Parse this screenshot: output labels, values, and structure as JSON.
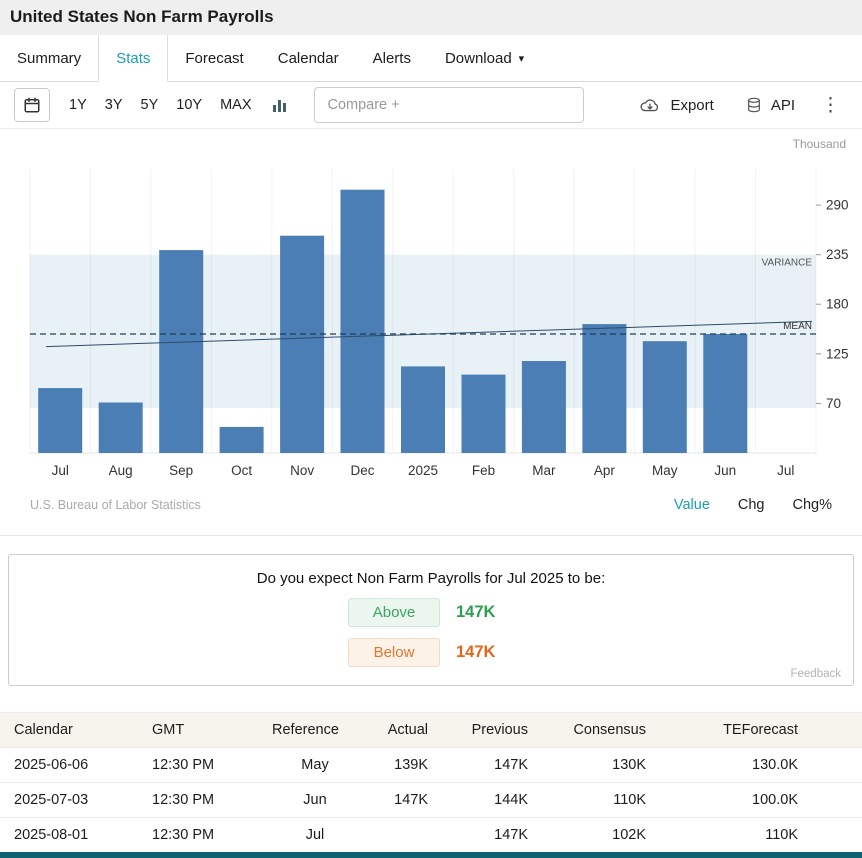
{
  "header": {
    "title": "United States Non Farm Payrolls"
  },
  "tabs": [
    {
      "label": "Summary",
      "active": false
    },
    {
      "label": "Stats",
      "active": true
    },
    {
      "label": "Forecast",
      "active": false
    },
    {
      "label": "Calendar",
      "active": false
    },
    {
      "label": "Alerts",
      "active": false
    },
    {
      "label": "Download",
      "active": false,
      "has_caret": true
    }
  ],
  "toolbar": {
    "ranges": [
      "1Y",
      "3Y",
      "5Y",
      "10Y",
      "MAX"
    ],
    "compare_placeholder": "Compare +",
    "export_label": "Export",
    "api_label": "API"
  },
  "icons": {
    "caret_down": "▾",
    "kebab_menu": "⋮"
  },
  "chart_data": {
    "type": "bar",
    "title": "United States Non Farm Payrolls",
    "unit_label": "Thousand",
    "categories": [
      "Jul",
      "Aug",
      "Sep",
      "Oct",
      "Nov",
      "Dec",
      "2025",
      "Feb",
      "Mar",
      "Apr",
      "May",
      "Jun",
      "Jul"
    ],
    "values": [
      87,
      71,
      240,
      44,
      256,
      307,
      111,
      102,
      117,
      158,
      139,
      147,
      null
    ],
    "y_ticks": [
      70,
      125,
      180,
      235,
      290
    ],
    "ylim": [
      15,
      330
    ],
    "mean": 147,
    "mean_label": "MEAN",
    "variance_band": [
      65,
      235
    ],
    "variance_label": "VARIANCE",
    "trend": [
      133,
      161
    ],
    "bar_color": "#4a7eb5",
    "band_color": "#e7f1f6",
    "grid": true,
    "legend_position": "none"
  },
  "chart_footer": {
    "source": "U.S. Bureau of Labor Statistics",
    "links": [
      {
        "label": "Value",
        "active": true
      },
      {
        "label": "Chg",
        "active": false
      },
      {
        "label": "Chg%",
        "active": false
      }
    ]
  },
  "poll": {
    "question": "Do you expect Non Farm Payrolls for Jul 2025 to be:",
    "options": [
      {
        "label": "Above",
        "value": "147K",
        "style": "above"
      },
      {
        "label": "Below",
        "value": "147K",
        "style": "below"
      }
    ],
    "feedback_label": "Feedback"
  },
  "table": {
    "headers": [
      "Calendar",
      "GMT",
      "Reference",
      "Actual",
      "Previous",
      "Consensus",
      "TEForecast"
    ],
    "rows": [
      [
        "2025-06-06",
        "12:30 PM",
        "May",
        "139K",
        "147K",
        "130K",
        "130.0K"
      ],
      [
        "2025-07-03",
        "12:30 PM",
        "Jun",
        "147K",
        "144K",
        "110K",
        "100.0K"
      ],
      [
        "2025-08-01",
        "12:30 PM",
        "Jul",
        "",
        "147K",
        "102K",
        "110K"
      ]
    ]
  },
  "colors": {
    "accent_teal": "#1a9fb4",
    "bar_blue": "#4a7eb5",
    "above_green": "#3aa55c",
    "below_orange": "#e0762f",
    "footer_strip": "#0e6370"
  }
}
